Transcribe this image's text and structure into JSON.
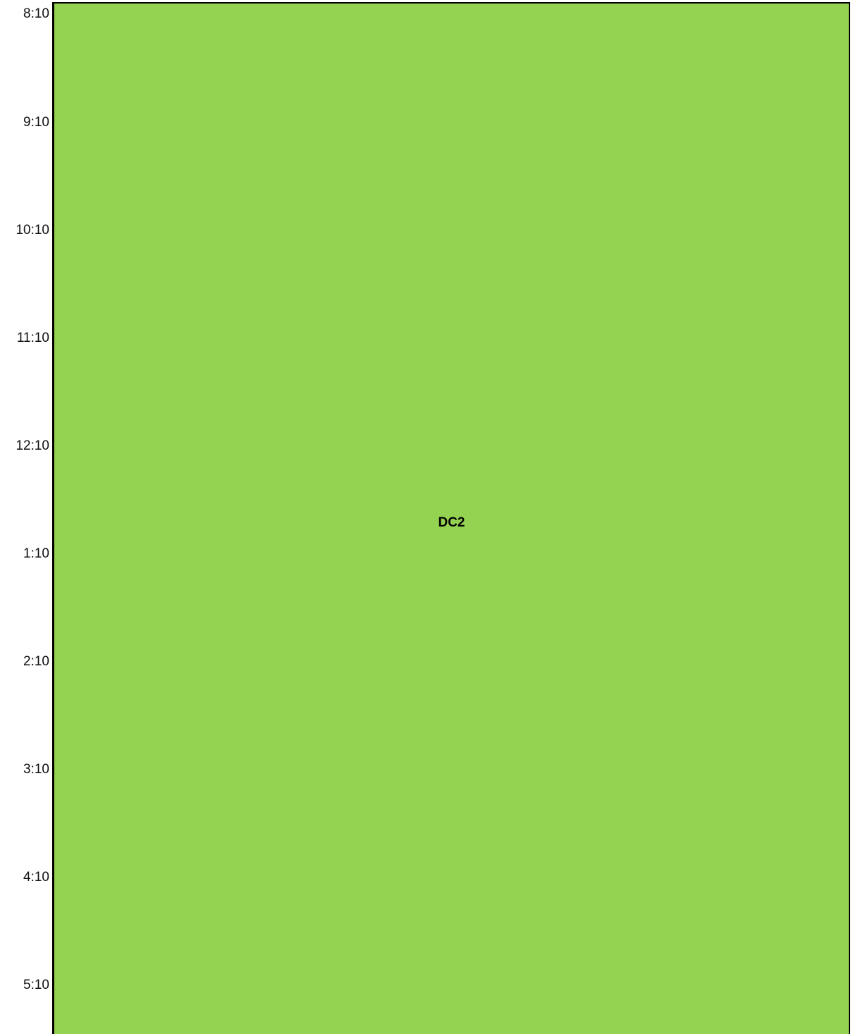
{
  "time_labels": [
    "8:10",
    "9:10",
    "10:10",
    "11:10",
    "12:10",
    "1:10",
    "2:10",
    "3:10",
    "4:10",
    "5:10"
  ],
  "event": {
    "title": "DC2",
    "color": "#94d351"
  }
}
